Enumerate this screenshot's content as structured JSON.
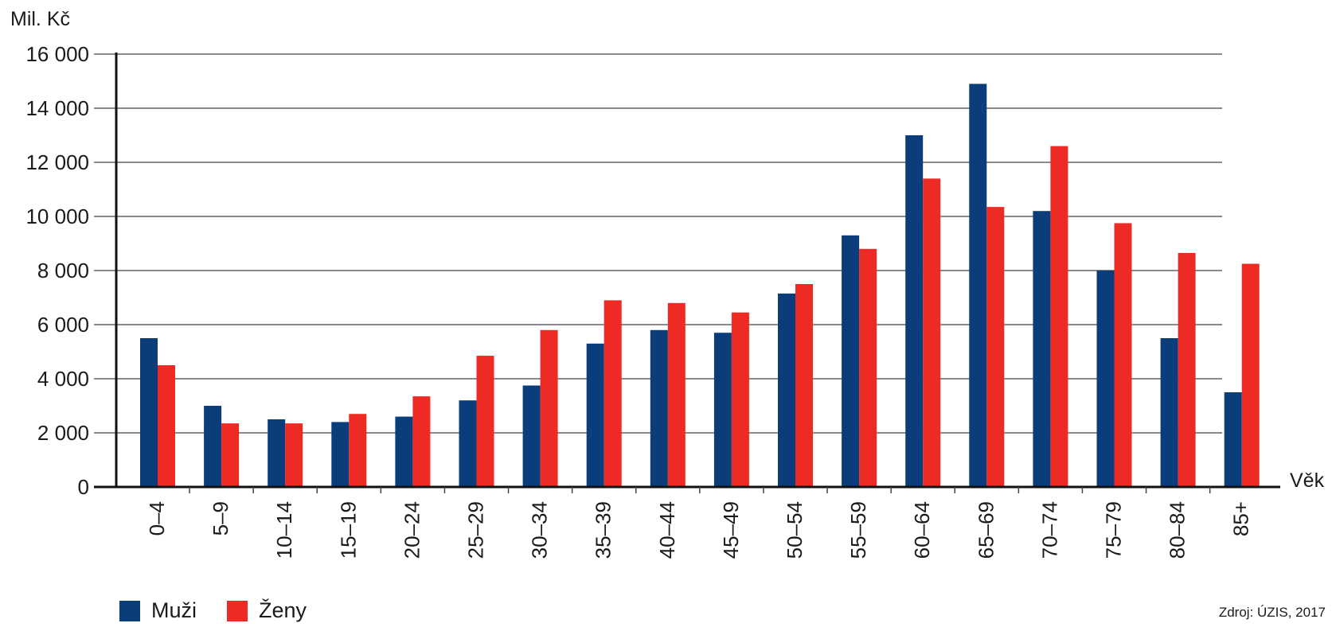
{
  "chart_data": {
    "type": "bar",
    "ylabel": "Mil. Kč",
    "xlabel": "Věk",
    "ylim": [
      0,
      16000
    ],
    "yticks": [
      0,
      2000,
      4000,
      6000,
      8000,
      10000,
      12000,
      14000,
      16000
    ],
    "ytick_labels": [
      "0",
      "2 000",
      "4 000",
      "6 000",
      "8 000",
      "10 000",
      "12 000",
      "14 000",
      "16 000"
    ],
    "grid": true,
    "categories": [
      "0–4",
      "5–9",
      "10–14",
      "15–19",
      "20–24",
      "25–29",
      "30–34",
      "35–39",
      "40–44",
      "45–49",
      "50–54",
      "55–59",
      "60–64",
      "65–69",
      "70–74",
      "75–79",
      "80–84",
      "85+"
    ],
    "series": [
      {
        "name": "Muži",
        "color": "#0b3d7a",
        "values": [
          5500,
          3000,
          2500,
          2400,
          2600,
          3200,
          3750,
          5300,
          5800,
          5700,
          7150,
          9300,
          13000,
          14900,
          10200,
          8000,
          5500,
          3500
        ]
      },
      {
        "name": "Ženy",
        "color": "#ee2a24",
        "values": [
          4500,
          2350,
          2350,
          2700,
          3350,
          4850,
          5800,
          6900,
          6800,
          6450,
          7500,
          8800,
          11400,
          10350,
          12600,
          9750,
          8650,
          8250
        ]
      }
    ],
    "legend_position": "bottom-left",
    "source": "Zdroj: ÚZIS, 2017"
  }
}
